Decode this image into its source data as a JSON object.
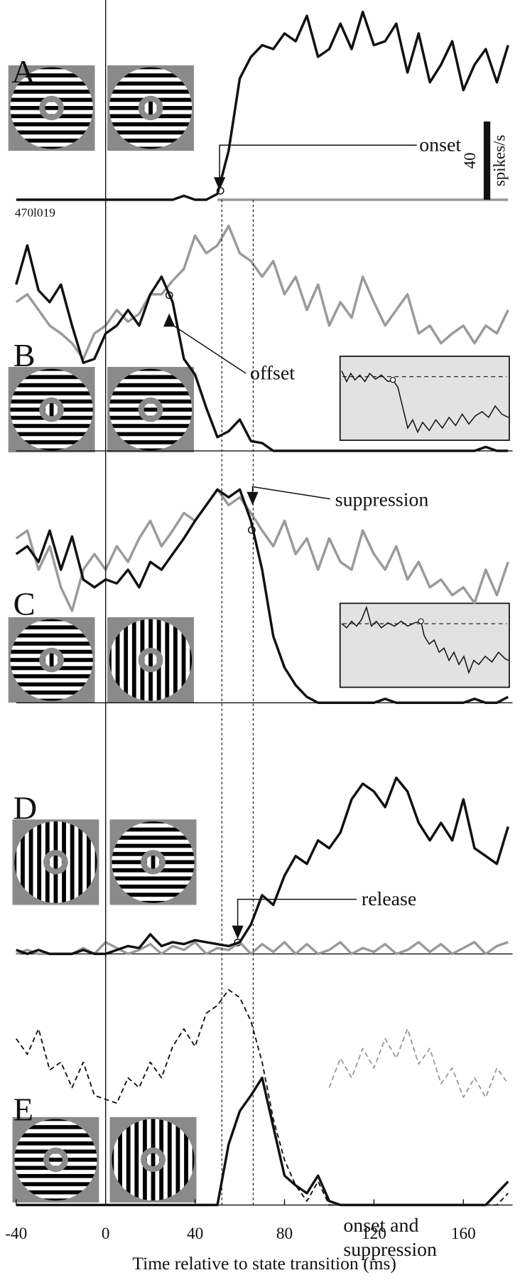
{
  "chart_data": [
    {
      "type": "line",
      "label": "A",
      "annotation": [
        "onset"
      ],
      "note": "470l019",
      "scale_bar": 40,
      "scale_unit": "spikes/s",
      "xlim": [
        -40,
        182
      ],
      "ylim": [
        0,
        120
      ],
      "x": [
        -40,
        -35,
        -30,
        -25,
        -20,
        -15,
        -10,
        -5,
        0,
        5,
        10,
        15,
        20,
        25,
        30,
        35,
        40,
        45,
        50,
        55,
        60,
        65,
        70,
        75,
        80,
        85,
        90,
        95,
        100,
        105,
        110,
        115,
        120,
        125,
        130,
        135,
        140,
        145,
        150,
        155,
        160,
        165,
        170,
        175,
        180
      ],
      "series": [
        {
          "color": "#9a9a9a",
          "dash": false,
          "values": [
            null,
            null,
            null,
            null,
            null,
            null,
            null,
            null,
            null,
            null,
            null,
            null,
            null,
            null,
            null,
            null,
            null,
            null,
            0,
            0,
            0,
            0,
            0,
            0,
            0,
            0,
            0,
            0,
            0,
            0,
            0,
            0,
            0,
            0,
            0,
            0,
            0,
            0,
            0,
            0,
            0,
            0,
            0,
            0,
            0
          ]
        },
        {
          "color": "#111111",
          "dash": false,
          "values": [
            0,
            0,
            0,
            0,
            0,
            0,
            0,
            0,
            0,
            0,
            0,
            0,
            0,
            0,
            0,
            2,
            0,
            0,
            3,
            25,
            62,
            73,
            79,
            77,
            85,
            81,
            94,
            73,
            77,
            90,
            77,
            96,
            79,
            81,
            90,
            65,
            85,
            60,
            69,
            81,
            56,
            69,
            77,
            60,
            79
          ]
        }
      ]
    },
    {
      "type": "line",
      "label": "B",
      "annotation": [
        "offset"
      ],
      "xlim": [
        -40,
        182
      ],
      "ylim": [
        0,
        120
      ],
      "x": [
        -40,
        -35,
        -30,
        -25,
        -20,
        -15,
        -10,
        -5,
        0,
        5,
        10,
        15,
        20,
        25,
        30,
        35,
        40,
        45,
        50,
        55,
        60,
        65,
        70,
        75,
        80,
        85,
        90,
        95,
        100,
        105,
        110,
        115,
        120,
        125,
        130,
        135,
        140,
        145,
        150,
        155,
        160,
        165,
        170,
        175,
        180
      ],
      "series": [
        {
          "color": "#9a9a9a",
          "dash": false,
          "values": [
            76,
            80,
            72,
            64,
            60,
            55,
            47,
            60,
            64,
            72,
            66,
            70,
            80,
            80,
            87,
            93,
            110,
            101,
            105,
            115,
            101,
            97,
            89,
            97,
            80,
            89,
            72,
            85,
            64,
            76,
            68,
            89,
            76,
            64,
            72,
            80,
            60,
            64,
            55,
            60,
            64,
            55,
            64,
            60,
            72
          ]
        },
        {
          "color": "#111111",
          "dash": false,
          "values": [
            85,
            105,
            82,
            76,
            85,
            64,
            45,
            47,
            60,
            64,
            72,
            64,
            80,
            89,
            76,
            47,
            39,
            22,
            7,
            10,
            16,
            5,
            4,
            0,
            0,
            0,
            0,
            0,
            0,
            0,
            0,
            0,
            0,
            0,
            0,
            0,
            0,
            0,
            0,
            0,
            0,
            0,
            2,
            0,
            0
          ]
        }
      ]
    },
    {
      "type": "line",
      "label": "C",
      "annotation": [
        "suppression"
      ],
      "xlim": [
        -40,
        182
      ],
      "ylim": [
        0,
        120
      ],
      "x": [
        -40,
        -35,
        -30,
        -25,
        -20,
        -15,
        -10,
        -5,
        0,
        5,
        10,
        15,
        20,
        25,
        30,
        35,
        40,
        45,
        50,
        55,
        60,
        65,
        70,
        75,
        80,
        85,
        90,
        95,
        100,
        105,
        110,
        115,
        120,
        125,
        130,
        135,
        140,
        145,
        150,
        155,
        160,
        165,
        170,
        175,
        180
      ],
      "series": [
        {
          "color": "#9a9a9a",
          "dash": false,
          "values": [
            84,
            88,
            68,
            80,
            59,
            47,
            68,
            76,
            68,
            80,
            72,
            84,
            93,
            80,
            88,
            97,
            93,
            101,
            109,
            101,
            105,
            97,
            88,
            80,
            93,
            76,
            84,
            68,
            84,
            72,
            68,
            88,
            76,
            68,
            80,
            63,
            72,
            59,
            63,
            55,
            59,
            51,
            68,
            55,
            72
          ]
        },
        {
          "color": "#111111",
          "dash": false,
          "values": [
            76,
            80,
            72,
            88,
            68,
            85,
            63,
            59,
            63,
            61,
            68,
            59,
            72,
            68,
            76,
            84,
            93,
            101,
            109,
            105,
            109,
            93,
            68,
            34,
            18,
            9,
            3,
            0,
            0,
            0,
            0,
            0,
            0,
            2,
            0,
            0,
            0,
            0,
            0,
            0,
            0,
            2,
            0,
            0,
            3
          ]
        }
      ]
    },
    {
      "type": "line",
      "label": "D",
      "annotation": [
        "release"
      ],
      "xlim": [
        -40,
        182
      ],
      "ylim": [
        0,
        120
      ],
      "x": [
        -40,
        -35,
        -30,
        -25,
        -20,
        -15,
        -10,
        -5,
        0,
        5,
        10,
        15,
        20,
        25,
        30,
        35,
        40,
        45,
        50,
        55,
        60,
        65,
        70,
        75,
        80,
        85,
        90,
        95,
        100,
        105,
        110,
        115,
        120,
        125,
        130,
        135,
        140,
        145,
        150,
        155,
        160,
        165,
        170,
        175,
        180
      ],
      "series": [
        {
          "color": "#9a9a9a",
          "dash": false,
          "values": [
            0,
            2,
            0,
            0,
            0,
            0,
            3,
            0,
            6,
            3,
            0,
            2,
            5,
            0,
            4,
            2,
            6,
            0,
            3,
            2,
            6,
            0,
            5,
            1,
            6,
            0,
            5,
            0,
            2,
            6,
            0,
            3,
            1,
            5,
            0,
            2,
            6,
            1,
            5,
            0,
            3,
            6,
            0,
            4,
            6
          ]
        },
        {
          "color": "#111111",
          "dash": false,
          "values": [
            2,
            0,
            2,
            0,
            0,
            0,
            2,
            0,
            0,
            2,
            4,
            3,
            10,
            4,
            6,
            5,
            7,
            6,
            5,
            4,
            6,
            15,
            30,
            25,
            40,
            50,
            46,
            58,
            54,
            62,
            79,
            87,
            83,
            75,
            90,
            83,
            67,
            58,
            67,
            58,
            79,
            54,
            50,
            46,
            65
          ]
        }
      ]
    },
    {
      "type": "line",
      "label": "E",
      "annotation": [
        "onset and",
        "suppression"
      ],
      "xlim": [
        -40,
        182
      ],
      "ylim": [
        0,
        120
      ],
      "x": [
        -40,
        -35,
        -30,
        -25,
        -20,
        -15,
        -10,
        -5,
        0,
        5,
        10,
        15,
        20,
        25,
        30,
        35,
        40,
        45,
        50,
        55,
        60,
        65,
        70,
        75,
        80,
        85,
        90,
        95,
        100,
        105,
        110,
        115,
        120,
        125,
        130,
        135,
        140,
        145,
        150,
        155,
        160,
        165,
        170,
        175,
        180
      ],
      "xticks": [
        -40,
        0,
        40,
        80,
        120,
        160
      ],
      "xlabel": "Time relative to state transition (ms)",
      "vlines": [
        {
          "x": 0,
          "style": "solid"
        },
        {
          "x": 52,
          "style": "dotted"
        },
        {
          "x": 66,
          "style": "dotted"
        }
      ],
      "series": [
        {
          "color": "#9a9a9a",
          "dash": true,
          "values": [
            null,
            null,
            null,
            null,
            null,
            null,
            null,
            null,
            null,
            null,
            null,
            null,
            null,
            null,
            null,
            null,
            null,
            null,
            null,
            null,
            null,
            null,
            null,
            null,
            null,
            null,
            null,
            null,
            60,
            75,
            65,
            80,
            70,
            85,
            75,
            90,
            72,
            80,
            62,
            70,
            55,
            65,
            55,
            70,
            62
          ]
        },
        {
          "color": "#111111",
          "dash": true,
          "values": [
            85,
            77,
            90,
            69,
            73,
            60,
            73,
            56,
            54,
            52,
            65,
            60,
            73,
            65,
            81,
            90,
            81,
            98,
            102,
            110,
            106,
            94,
            73,
            44,
            23,
            10,
            2,
            12,
            0,
            0,
            0,
            0,
            0,
            0,
            0,
            0,
            0,
            0,
            0,
            0,
            0,
            0,
            0,
            0,
            6
          ]
        },
        {
          "color": "#111111",
          "dash": false,
          "values": [
            0,
            0,
            0,
            0,
            0,
            0,
            0,
            0,
            0,
            0,
            0,
            0,
            0,
            0,
            0,
            0,
            0,
            0,
            0,
            31,
            48,
            56,
            65,
            40,
            15,
            10,
            6,
            15,
            2,
            0,
            0,
            0,
            0,
            0,
            0,
            0,
            0,
            0,
            0,
            0,
            0,
            0,
            0,
            6,
            12
          ]
        }
      ]
    }
  ]
}
